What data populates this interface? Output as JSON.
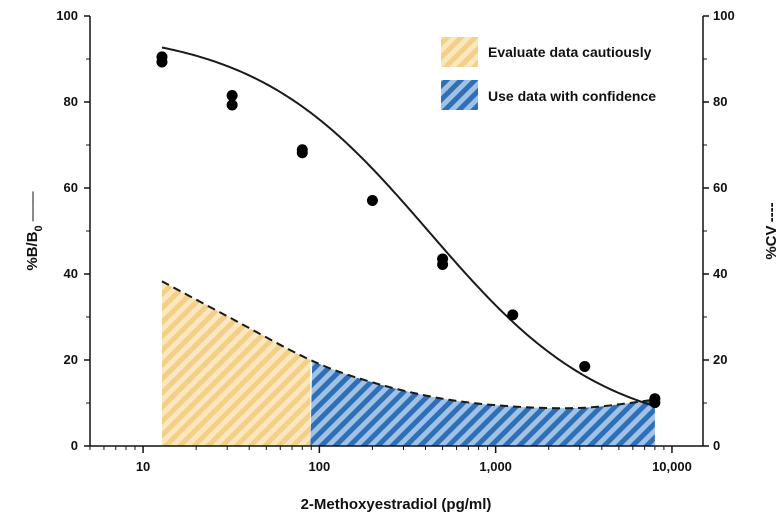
{
  "chart_data": {
    "type": "line",
    "title": "",
    "xlabel": "2-Methoxyestradiol (pg/ml)",
    "ylabel_left": "%B/B",
    "ylabel_left_subscript": "0",
    "ylabel_left_marker": "——",
    "ylabel_right": "%CV",
    "ylabel_right_marker": "----",
    "x_scale": "log",
    "xlim": [
      5,
      15000
    ],
    "ylim": [
      0,
      100
    ],
    "x_ticks": [
      {
        "value": 10,
        "label": "10"
      },
      {
        "value": 100,
        "label": "100"
      },
      {
        "value": 1000,
        "label": "1,000"
      },
      {
        "value": 10000,
        "label": "10,000"
      }
    ],
    "y_ticks": [
      {
        "value": 0,
        "label": "0"
      },
      {
        "value": 20,
        "label": "20"
      },
      {
        "value": 40,
        "label": "40"
      },
      {
        "value": 60,
        "label": "60"
      },
      {
        "value": 80,
        "label": "80"
      },
      {
        "value": 100,
        "label": "100"
      }
    ],
    "legend_position": "top-right",
    "legend": [
      {
        "label": "Evaluate data cautiously",
        "color": "#f3d08a",
        "pattern": "diagonal-stripes"
      },
      {
        "label": "Use data with confidence",
        "color": "#2f6fb5",
        "pattern": "diagonal-stripes"
      }
    ],
    "regions": [
      {
        "name": "Evaluate data cautiously",
        "x_range": [
          12.8,
          89
        ],
        "color": "#f3d08a"
      },
      {
        "name": "Use data with confidence",
        "x_range": [
          89,
          8000
        ],
        "color": "#2f6fb5"
      }
    ],
    "series": [
      {
        "role": "%B/B0",
        "style": "solid",
        "x": [
          12.8,
          12.8,
          32,
          32,
          80,
          80,
          200,
          500,
          500,
          1250,
          3200,
          8000,
          8000
        ],
        "y": [
          90.5,
          89.3,
          81.5,
          79.3,
          68.9,
          68.2,
          57.1,
          43.5,
          42.2,
          30.5,
          18.5,
          11.0,
          10.1
        ]
      },
      {
        "role": "%CV",
        "style": "dashed",
        "x": [
          12.8,
          30,
          89,
          200,
          500,
          1250,
          3200,
          8000
        ],
        "y": [
          38.3,
          30.2,
          20.0,
          14.8,
          11.0,
          9.2,
          8.9,
          10.8
        ]
      }
    ],
    "fit_curve": {
      "top": 97,
      "bottom": 2.5,
      "ic50": 420,
      "slope": 0.87
    }
  }
}
